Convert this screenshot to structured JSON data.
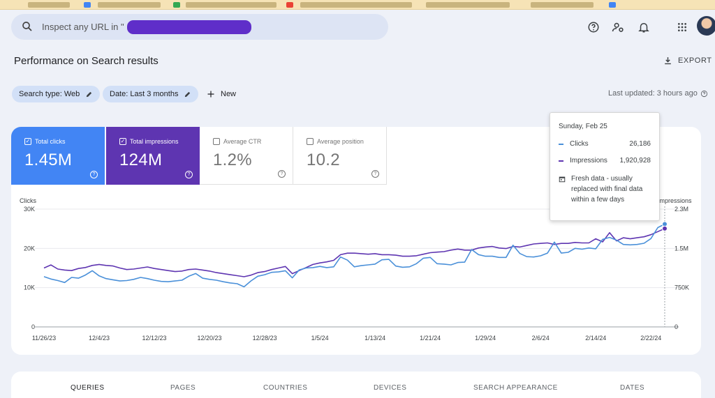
{
  "search": {
    "placeholder": "Inspect any URL in \""
  },
  "page": {
    "title": "Performance on Search results",
    "export_label": "EXPORT"
  },
  "filters": [
    {
      "label": "Search type: Web"
    },
    {
      "label": "Date: Last 3 months"
    }
  ],
  "new_label": "New",
  "last_updated": "Last updated: 3 hours ago",
  "metrics": {
    "clicks": {
      "label": "Total clicks",
      "value": "1.45M",
      "checked": true
    },
    "impressions": {
      "label": "Total impressions",
      "value": "124M",
      "checked": true
    },
    "ctr": {
      "label": "Average CTR",
      "value": "1.2%",
      "checked": false
    },
    "position": {
      "label": "Average position",
      "value": "10.2",
      "checked": false
    }
  },
  "tooltip": {
    "date": "Sunday, Feb 25",
    "clicks_label": "Clicks",
    "clicks_value": "26,186",
    "impressions_label": "Impressions",
    "impressions_value": "1,920,928",
    "note": "Fresh data - usually replaced with final data within a few days"
  },
  "tabs": [
    "QUERIES",
    "PAGES",
    "COUNTRIES",
    "DEVICES",
    "SEARCH APPEARANCE",
    "DATES"
  ],
  "colors": {
    "clicks": "#4a90d9",
    "impressions": "#5e35b1",
    "accent": "#1a73e8"
  },
  "icons": [
    "search-icon",
    "help-icon",
    "manage-accounts-icon",
    "bell-icon",
    "apps-grid-icon",
    "download-icon",
    "pencil-icon",
    "plus-icon",
    "calendar-icon"
  ],
  "chart_data": {
    "type": "line",
    "x_tick_labels": [
      "11/26/23",
      "12/4/23",
      "12/12/23",
      "12/20/23",
      "12/28/23",
      "1/5/24",
      "1/13/24",
      "1/21/24",
      "1/29/24",
      "2/6/24",
      "2/14/24",
      "2/22/24"
    ],
    "x_start": "2023-11-26",
    "left_axis": {
      "label": "Clicks",
      "ticks": [
        "0",
        "10K",
        "20K",
        "30K"
      ],
      "range": [
        0,
        30000
      ]
    },
    "right_axis": {
      "label": "Impressions",
      "ticks": [
        "0",
        "750K",
        "1.5M",
        "2.3M"
      ],
      "range": [
        0,
        2300000
      ]
    },
    "grid": true,
    "series": [
      {
        "name": "Clicks",
        "axis": "left",
        "values": [
          12800,
          12200,
          11800,
          11300,
          12600,
          12400,
          13200,
          14300,
          13000,
          12300,
          12000,
          11700,
          11800,
          12100,
          12600,
          12300,
          11900,
          11600,
          11500,
          11700,
          11900,
          12900,
          13600,
          12400,
          12100,
          11900,
          11500,
          11200,
          11000,
          10200,
          11700,
          12900,
          13300,
          13900,
          14000,
          14300,
          12500,
          14500,
          15000,
          15100,
          15400,
          15100,
          15300,
          17800,
          17000,
          15300,
          15600,
          15800,
          16000,
          17100,
          17200,
          15500,
          15200,
          15300,
          16100,
          17500,
          17700,
          16100,
          16000,
          15800,
          16400,
          16500,
          19700,
          18400,
          18000,
          18000,
          17700,
          17700,
          20800,
          18700,
          17900,
          17800,
          18100,
          18800,
          21600,
          18800,
          19000,
          20000,
          19800,
          20100,
          19900,
          22300,
          22800,
          22100,
          21000,
          20900,
          21000,
          21300,
          22500,
          25300,
          26186
        ]
      },
      {
        "name": "Impressions",
        "axis": "right",
        "values": [
          1150000,
          1210000,
          1130000,
          1110000,
          1100000,
          1140000,
          1160000,
          1200000,
          1220000,
          1200000,
          1190000,
          1150000,
          1120000,
          1130000,
          1150000,
          1170000,
          1140000,
          1120000,
          1100000,
          1080000,
          1090000,
          1120000,
          1130000,
          1110000,
          1090000,
          1060000,
          1040000,
          1020000,
          1000000,
          980000,
          1010000,
          1060000,
          1080000,
          1120000,
          1150000,
          1180000,
          1040000,
          1100000,
          1160000,
          1220000,
          1250000,
          1270000,
          1300000,
          1410000,
          1440000,
          1440000,
          1430000,
          1420000,
          1430000,
          1410000,
          1410000,
          1400000,
          1380000,
          1380000,
          1390000,
          1420000,
          1450000,
          1460000,
          1470000,
          1500000,
          1520000,
          1500000,
          1500000,
          1540000,
          1560000,
          1570000,
          1540000,
          1530000,
          1570000,
          1560000,
          1590000,
          1620000,
          1630000,
          1640000,
          1610000,
          1630000,
          1630000,
          1650000,
          1640000,
          1640000,
          1720000,
          1660000,
          1840000,
          1680000,
          1740000,
          1720000,
          1740000,
          1760000,
          1800000,
          1860000,
          1920928
        ]
      }
    ]
  }
}
